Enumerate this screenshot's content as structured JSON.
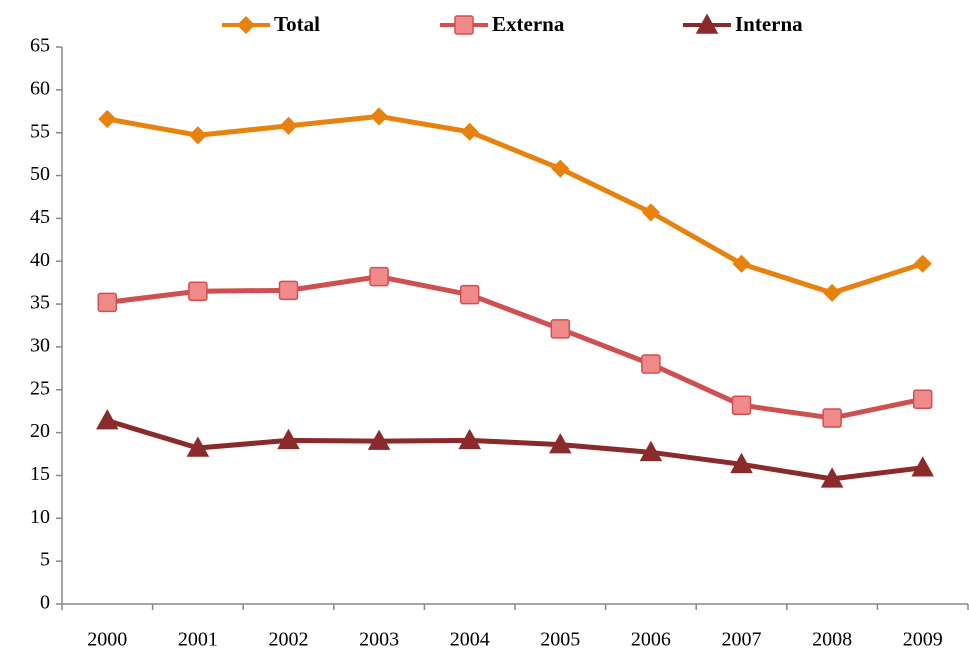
{
  "chart_data": {
    "type": "line",
    "categories": [
      "2000",
      "2001",
      "2002",
      "2003",
      "2004",
      "2005",
      "2006",
      "2007",
      "2008",
      "2009"
    ],
    "series": [
      {
        "name": "Total",
        "color": "#e8820f",
        "marker": "diamond",
        "values": [
          56.6,
          54.7,
          55.8,
          56.9,
          55.1,
          50.8,
          45.7,
          39.7,
          36.3,
          39.7
        ]
      },
      {
        "name": "Externa",
        "color": "#cf5050",
        "marker": "square",
        "values": [
          35.2,
          36.5,
          36.6,
          38.2,
          36.1,
          32.1,
          28.0,
          23.2,
          21.7,
          23.9
        ]
      },
      {
        "name": "Interna",
        "color": "#8b2a2a",
        "marker": "triangle",
        "values": [
          21.4,
          18.2,
          19.1,
          19.0,
          19.1,
          18.6,
          17.7,
          16.3,
          14.6,
          15.9
        ]
      }
    ],
    "ylim": [
      0,
      65
    ],
    "yticks": [
      0,
      5,
      10,
      15,
      20,
      25,
      30,
      35,
      40,
      45,
      50,
      55,
      60,
      65
    ],
    "grid": false,
    "legend": "top"
  }
}
